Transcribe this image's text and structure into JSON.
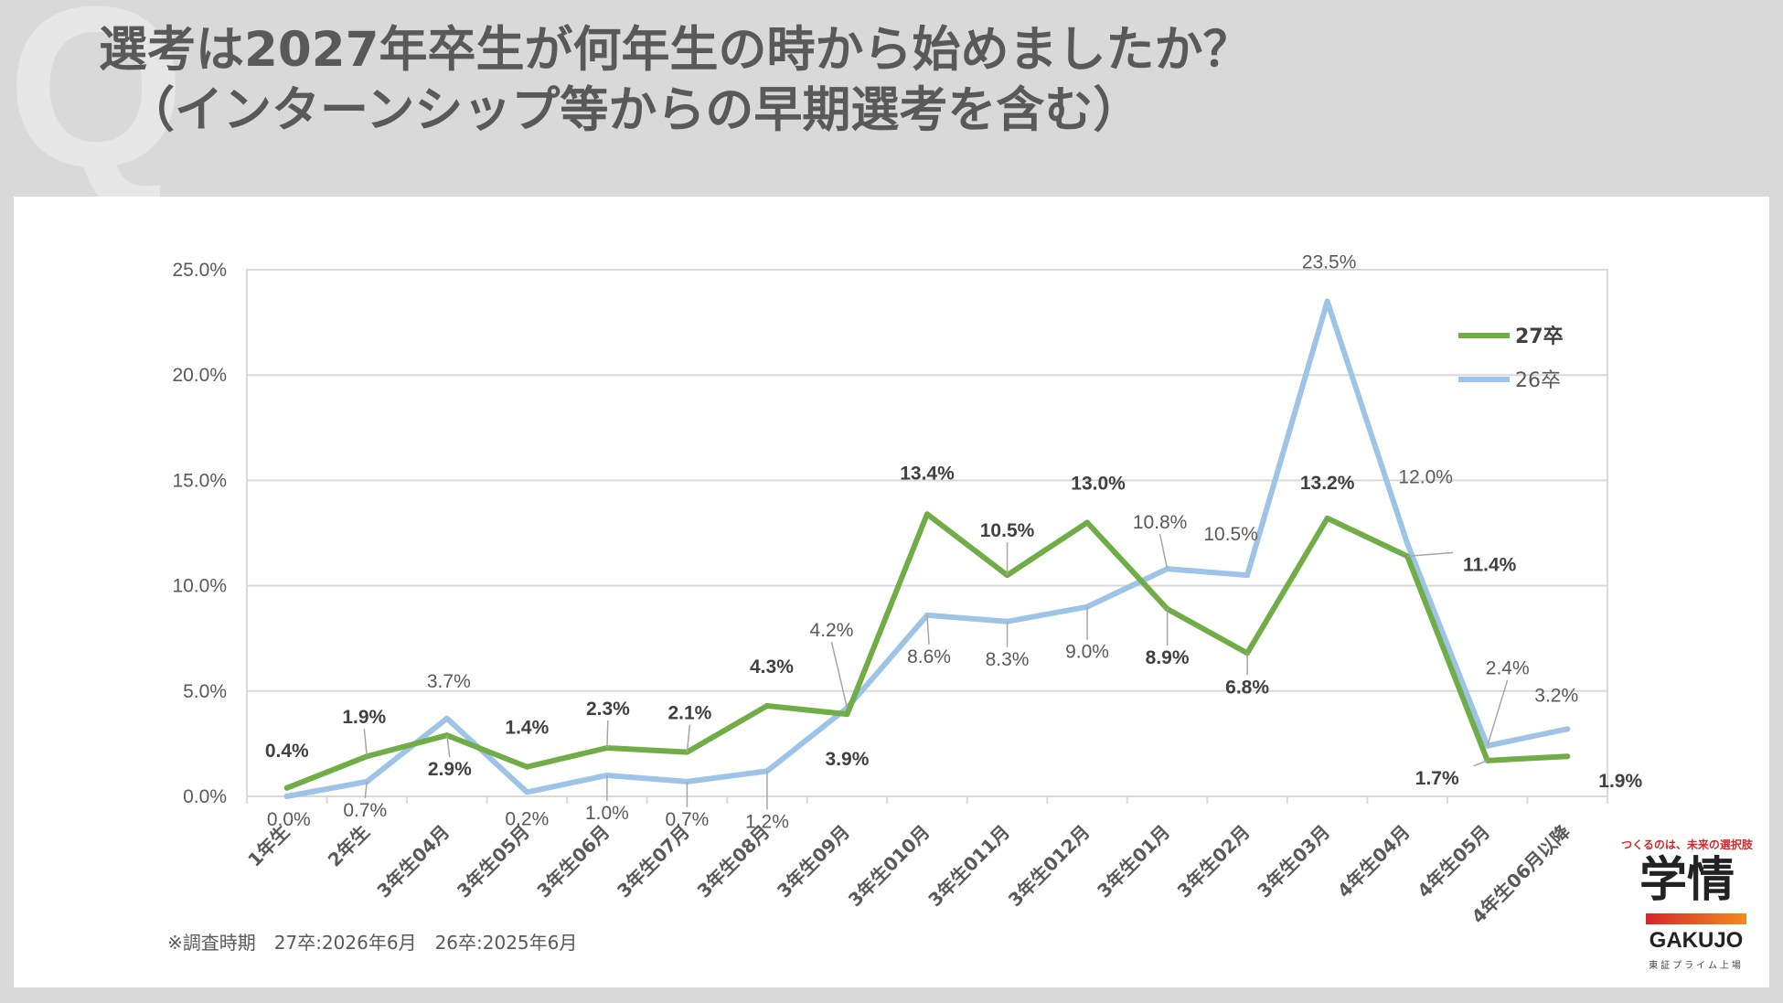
{
  "watermark": "Q",
  "title": {
    "line1": "選考は2027年卒生が何年生の時から始めましたか？",
    "line2": "（インターンシップ等からの早期選考を含む）"
  },
  "footnote": "※調査時期　27卒:2026年6月　26卒:2025年6月",
  "logo": {
    "tagline": "つくるのは、未来の選択肢",
    "kanji": "学情",
    "name": "GAKUJO",
    "sub": "東証プライム上場"
  },
  "colors": {
    "series27": "#70ad47",
    "series26": "#9dc3e6",
    "grid": "#d9d9d9",
    "text": "#595959",
    "label_bold": "#404040"
  },
  "chart_data": {
    "type": "line",
    "categories": [
      "1年生",
      "2年生",
      "3年生04月",
      "3年生05月",
      "3年生06月",
      "3年生07月",
      "3年生08月",
      "3年生09月",
      "3年生010月",
      "3年生011月",
      "3年生012月",
      "3年生01月",
      "3年生02月",
      "3年生03月",
      "4年生04月",
      "4年生05月",
      "4年生06月以降"
    ],
    "ylim": [
      0,
      25
    ],
    "yticks": [
      "0.0%",
      "5.0%",
      "10.0%",
      "15.0%",
      "20.0%",
      "25.0%"
    ],
    "grid": true,
    "legend_position": "top-right",
    "series": [
      {
        "name": "27卒",
        "values": [
          0.4,
          1.9,
          2.9,
          1.4,
          2.3,
          2.1,
          4.3,
          3.9,
          13.4,
          10.5,
          13.0,
          8.9,
          6.8,
          13.2,
          11.4,
          1.7,
          1.9
        ],
        "labels": [
          "0.4%",
          "1.9%",
          "2.9%",
          "1.4%",
          "2.3%",
          "2.1%",
          "4.3%",
          "3.9%",
          "13.4%",
          "10.5%",
          "13.0%",
          "8.9%",
          "6.8%",
          "13.2%",
          "11.4%",
          "1.7%",
          "1.9%"
        ]
      },
      {
        "name": "26卒",
        "values": [
          0.0,
          0.7,
          3.7,
          0.2,
          1.0,
          0.7,
          1.2,
          4.2,
          8.6,
          8.3,
          9.0,
          10.8,
          10.5,
          23.5,
          12.0,
          2.4,
          3.2
        ],
        "labels": [
          "0.0%",
          "0.7%",
          "3.7%",
          "0.2%",
          "1.0%",
          "0.7%",
          "1.2%",
          "4.2%",
          "8.6%",
          "8.3%",
          "9.0%",
          "10.8%",
          "10.5%",
          "23.5%",
          "12.0%",
          "2.4%",
          "3.2%"
        ]
      }
    ]
  }
}
